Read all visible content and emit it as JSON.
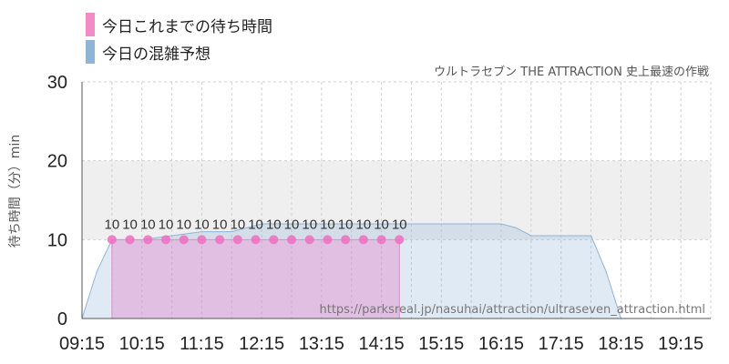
{
  "legend": {
    "actual_label": "今日これまでの待ち時間",
    "forecast_label": "今日の混雑予想",
    "actual_color": "#f28cc6",
    "forecast_color": "#8fb4d6"
  },
  "subtitle": "ウルトラセブン THE ATTRACTION 史上最速の作戦",
  "source_url": "https://parksreal.jp/nasuhai/attraction/ultraseven_attraction.html",
  "chart_data": {
    "type": "area",
    "ylabel": "待ち時間（分）min",
    "ylim": [
      0,
      30
    ],
    "y_ticks": [
      "0",
      "10",
      "20",
      "30"
    ],
    "x_ticks": [
      "09:15",
      "10:15",
      "11:15",
      "12:15",
      "13:15",
      "14:15",
      "15:15",
      "16:15",
      "17:15",
      "18:15",
      "19:15"
    ],
    "xlim": [
      "09:15",
      "19:45"
    ],
    "grid": true,
    "highlight_band": [
      10,
      20
    ],
    "series": [
      {
        "name": "今日これまでの待ち時間",
        "type": "area-with-markers",
        "x": [
          "09:45",
          "10:03",
          "10:21",
          "10:39",
          "10:57",
          "11:15",
          "11:33",
          "11:51",
          "12:09",
          "12:27",
          "12:45",
          "13:03",
          "13:21",
          "13:39",
          "13:57",
          "14:15",
          "14:33"
        ],
        "values": [
          10,
          10,
          10,
          10,
          10,
          10,
          10,
          10,
          10,
          10,
          10,
          10,
          10,
          10,
          10,
          10,
          10
        ],
        "data_labels": [
          "10",
          "10",
          "10",
          "10",
          "10",
          "10",
          "10",
          "10",
          "10",
          "10",
          "10",
          "10",
          "10",
          "10",
          "10",
          "10",
          "10"
        ],
        "color": "#e98ccf"
      },
      {
        "name": "今日の混雑予想",
        "type": "area",
        "x": [
          "09:15",
          "09:30",
          "09:45",
          "10:15",
          "10:45",
          "11:15",
          "11:45",
          "12:15",
          "12:45",
          "13:15",
          "13:45",
          "14:15",
          "14:45",
          "15:15",
          "15:45",
          "16:15",
          "16:30",
          "16:45",
          "17:15",
          "17:45",
          "18:00",
          "18:15",
          "18:30",
          "18:45",
          "19:15",
          "19:45"
        ],
        "values": [
          0,
          6,
          10,
          10,
          10.5,
          11,
          11,
          12,
          12,
          12,
          12,
          12,
          12,
          12,
          12,
          12,
          11.5,
          10.5,
          10.5,
          10.5,
          6,
          0,
          0,
          0,
          0,
          0
        ],
        "color": "#8fb4d6"
      }
    ]
  }
}
